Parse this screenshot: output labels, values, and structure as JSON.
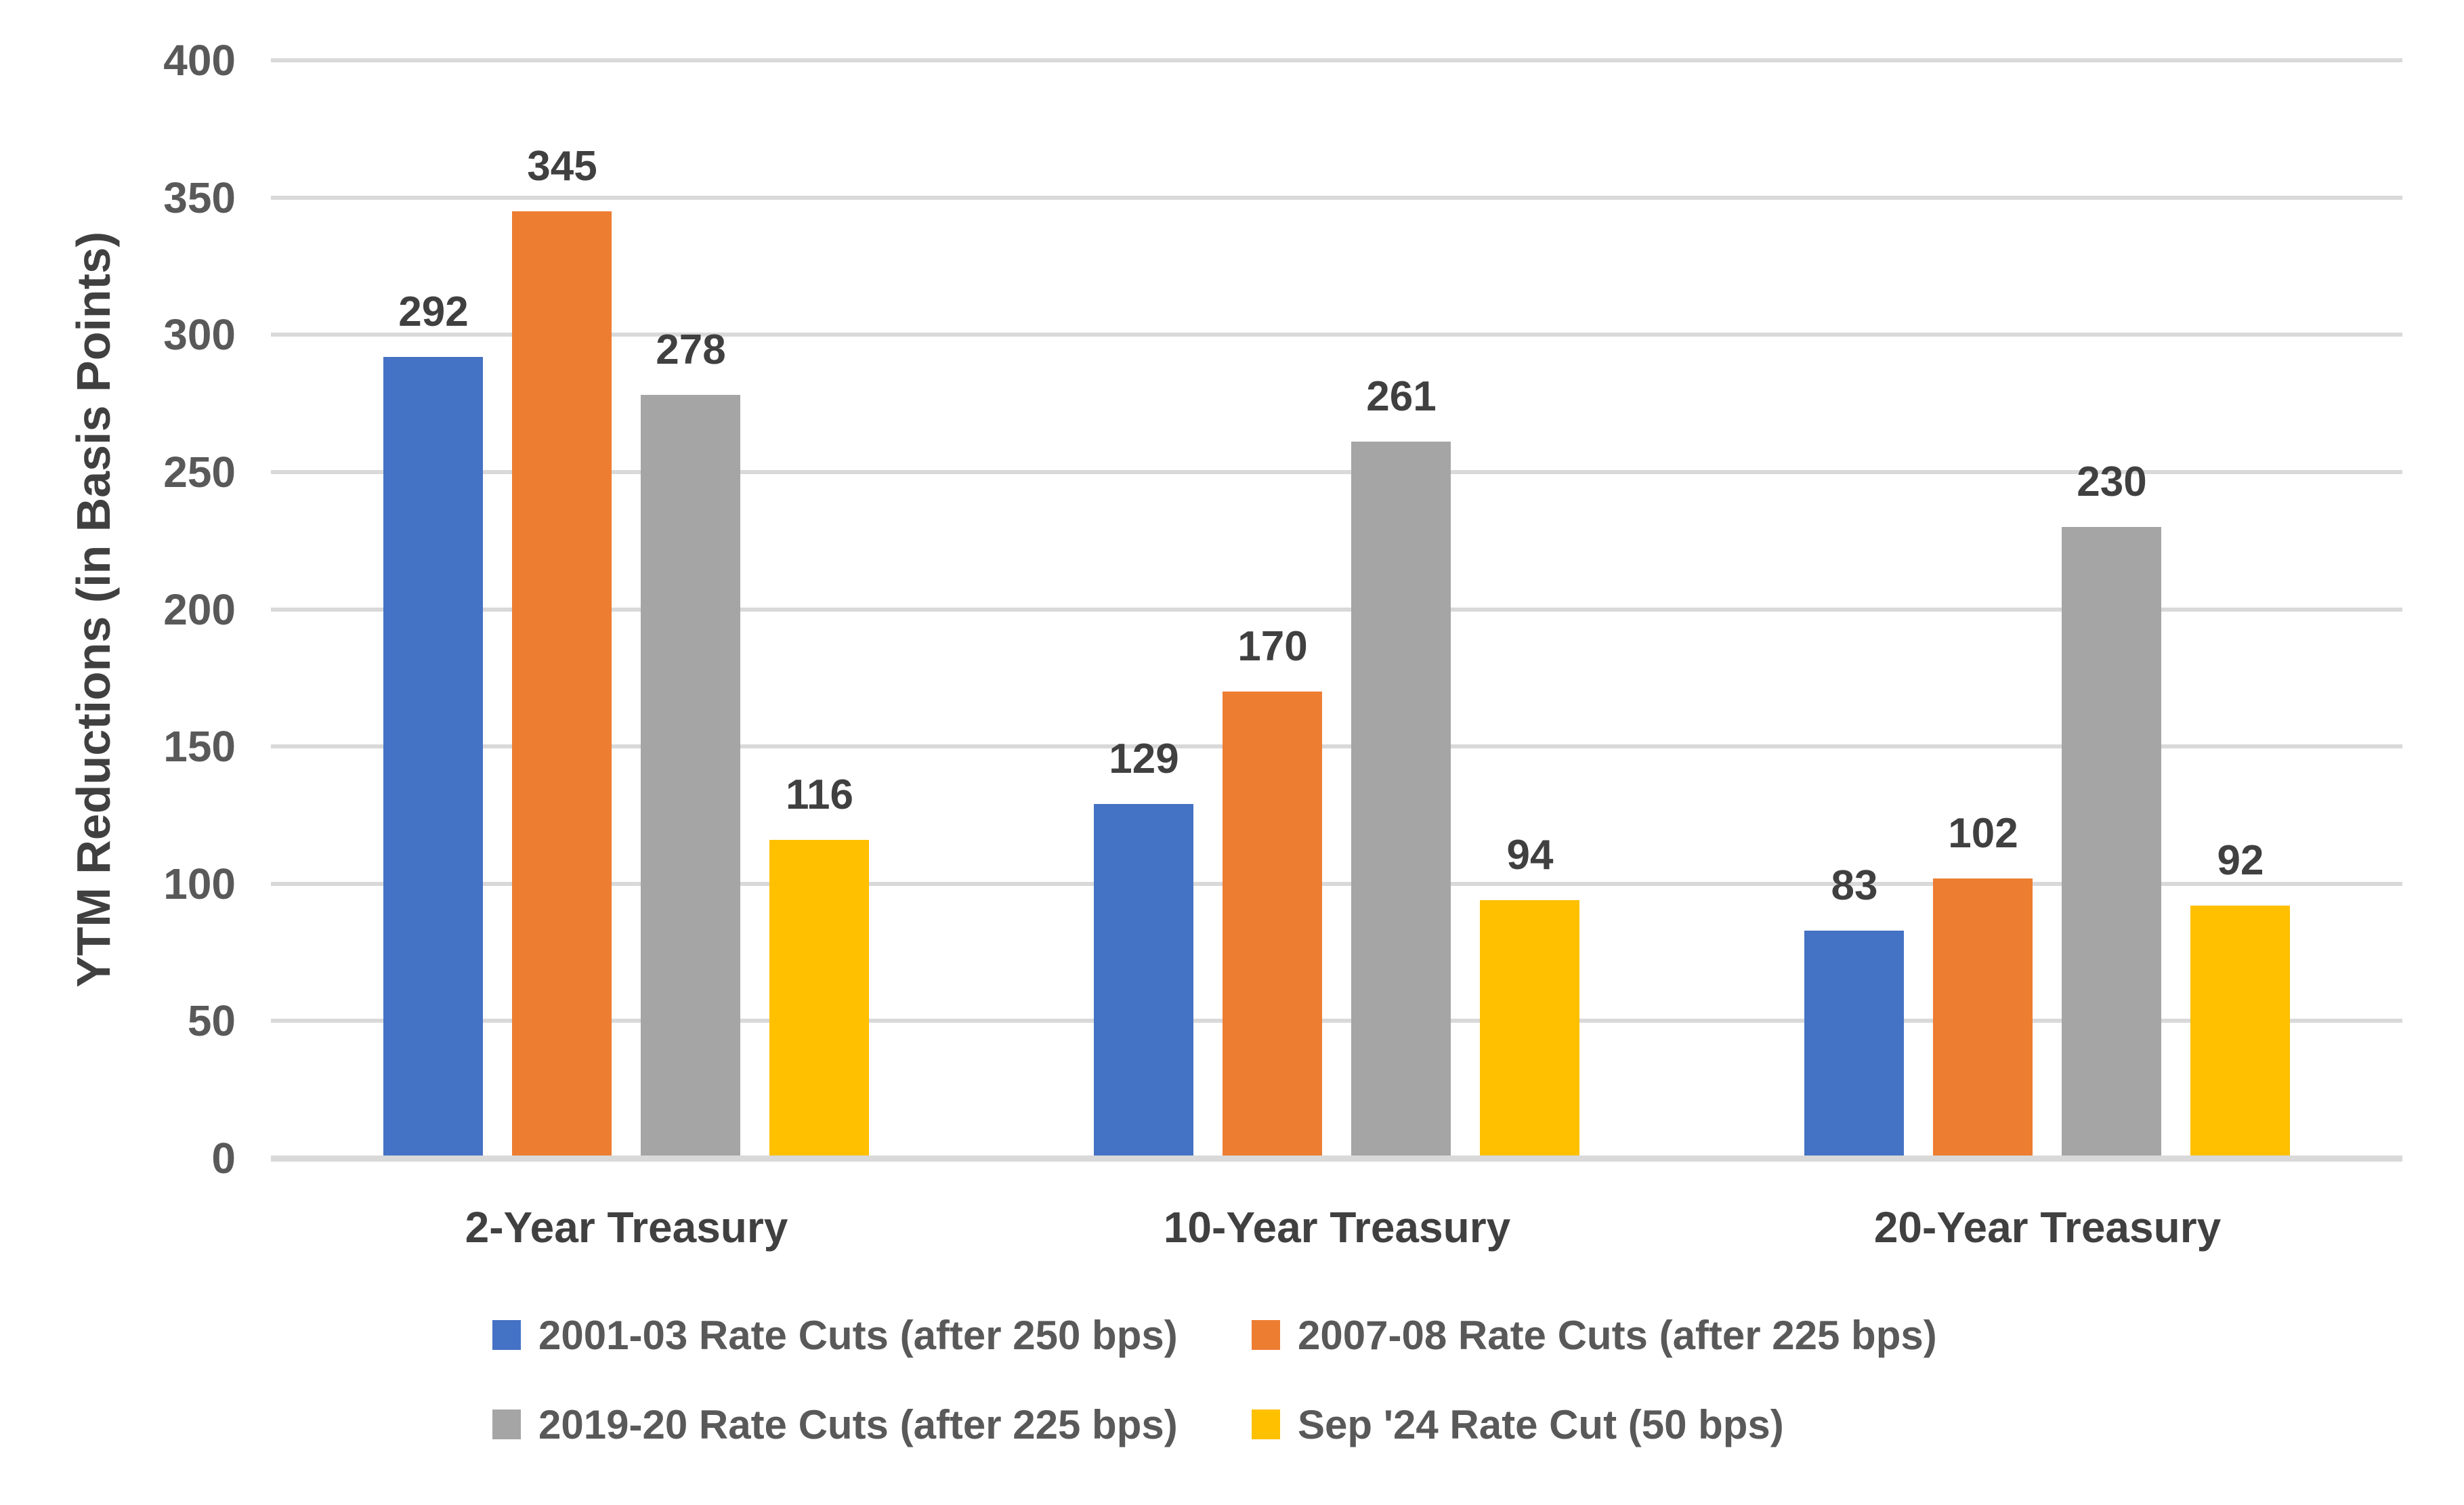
{
  "page": {
    "background": "#ffffff"
  },
  "chart_data": {
    "type": "bar",
    "title": "",
    "xlabel": "",
    "ylabel": "YTM Reductions (in Basis Points)",
    "ylim": [
      0,
      400
    ],
    "yticks": [
      0,
      50,
      100,
      150,
      200,
      250,
      300,
      350,
      400
    ],
    "grid": true,
    "data_labels": true,
    "legend_position": "bottom",
    "legend_rows": 2,
    "categories": [
      "2-Year Treasury",
      "10-Year Treasury",
      "20-Year Treasury"
    ],
    "series": [
      {
        "name": "2001-03 Rate Cuts (after 250 bps)",
        "color": "#4472C4",
        "values": [
          292,
          129,
          83
        ]
      },
      {
        "name": "2007-08 Rate Cuts (after 225 bps)",
        "color": "#ED7D31",
        "values": [
          345,
          170,
          102
        ]
      },
      {
        "name": "2019-20 Rate Cuts (after 225 bps)",
        "color": "#A5A5A5",
        "values": [
          278,
          261,
          230
        ]
      },
      {
        "name": "Sep '24 Rate Cut (50 bps)",
        "color": "#FFC000",
        "values": [
          116,
          94,
          92
        ]
      }
    ],
    "colors": {
      "gridline": "#d9d9d9",
      "axis_text": "#595959",
      "label_text": "#404040"
    }
  }
}
